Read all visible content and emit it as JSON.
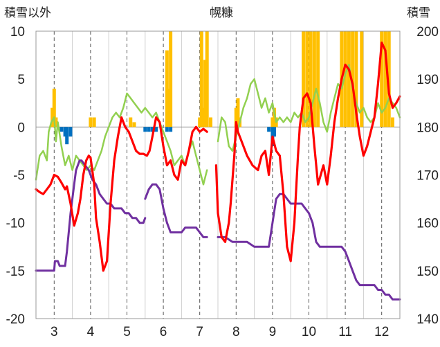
{
  "chart_data": {
    "type": "line",
    "title": "幌糠",
    "ylabel_left": "積雪以外",
    "ylabel_right": "積雪",
    "xlabel": "",
    "x_ticks": [
      "3",
      "4",
      "5",
      "6",
      "7",
      "8",
      "9",
      "10",
      "11",
      "12"
    ],
    "x_range": [
      2.5,
      12.5
    ],
    "ylim_left": [
      -20,
      10
    ],
    "ylim_right": [
      140,
      200
    ],
    "yticks_left": [
      "10",
      "5",
      "0",
      "-5",
      "-10",
      "-15",
      "-20"
    ],
    "yticks_right": [
      "200",
      "190",
      "180",
      "170",
      "160",
      "150",
      "140"
    ],
    "grid": "dashed vertical at each day",
    "colors": {
      "temperature": "#ff0000",
      "secondary": "#92d050",
      "snow_depth": "#7030a0",
      "precipitation": "#ffc000",
      "negative_bars": "#0070c0"
    },
    "series": [
      {
        "axis": "left",
        "x": [
          2.5,
          2.6,
          2.7,
          2.8,
          2.9,
          3.0,
          3.1,
          3.2,
          3.3,
          3.35,
          3.45,
          3.55,
          3.65,
          3.72,
          3.8,
          3.88,
          3.95,
          4.0,
          4.1,
          4.15,
          4.25,
          4.35,
          4.45,
          4.55,
          4.65,
          4.75,
          4.85,
          4.95,
          5.05,
          5.15,
          5.25,
          5.35,
          5.45,
          5.55,
          5.62,
          5.7,
          5.8,
          5.9,
          6.0,
          6.1,
          6.2,
          6.3,
          6.4,
          6.5,
          6.6,
          6.7,
          6.8,
          6.9,
          7.0,
          7.1,
          7.2
        ],
        "values": [
          -6.5,
          -6.8,
          -7.0,
          -6.5,
          -6.0,
          -5.0,
          -5.2,
          -5.8,
          -6.5,
          -6.2,
          -8.0,
          -10.3,
          -9.0,
          -7.5,
          -5.0,
          -3.5,
          -3.0,
          -3.2,
          -6.0,
          -9.5,
          -12.0,
          -15.0,
          -14.0,
          -8.0,
          -3.5,
          -1.0,
          1.0,
          0.0,
          -0.5,
          -1.5,
          -2.5,
          -2.8,
          -2.8,
          -3.0,
          -2.5,
          -1.0,
          1.0,
          0.5,
          -2.0,
          -4.0,
          -3.5,
          -5.0,
          -5.5,
          -3.5,
          -4.0,
          -2.5,
          -0.5,
          0.0,
          -0.5,
          -0.2,
          -0.5
        ]
      },
      {
        "axis": "left",
        "x": [
          7.45,
          7.5,
          7.6,
          7.7,
          7.8,
          7.85,
          7.95,
          8.0,
          8.05,
          8.15,
          8.3,
          8.45,
          8.6,
          8.7,
          8.8,
          8.9,
          9.0,
          9.1,
          9.2,
          9.3,
          9.4,
          9.5,
          9.6,
          9.7,
          9.75,
          9.85,
          9.95,
          10.05,
          10.15,
          10.25,
          10.4,
          10.5,
          10.6,
          10.7,
          10.8,
          10.9,
          11.0,
          11.1,
          11.2,
          11.3,
          11.4,
          11.5,
          11.6,
          11.7,
          11.8,
          11.9,
          12.0,
          12.1,
          12.2,
          12.3,
          12.4,
          12.5
        ],
        "values": [
          -4.0,
          -9.0,
          -11.5,
          -12.0,
          -10.0,
          -8.0,
          -3.0,
          0.5,
          -0.5,
          -1.5,
          -3.0,
          -4.0,
          -4.5,
          -3.0,
          -2.5,
          -5.0,
          -1.0,
          -2.5,
          -3.0,
          -7.0,
          -12.5,
          -14.0,
          -10.0,
          -3.0,
          0.0,
          3.0,
          3.5,
          2.5,
          -2.0,
          -6.0,
          -4.0,
          -6.0,
          -3.0,
          0.5,
          3.0,
          5.0,
          6.5,
          6.0,
          4.5,
          1.5,
          -1.0,
          -3.0,
          -2.0,
          -0.5,
          1.0,
          4.5,
          8.8,
          8.0,
          3.5,
          2.0,
          2.5,
          3.2
        ]
      },
      {
        "axis": "left",
        "x": [
          2.5,
          2.6,
          2.7,
          2.8,
          2.85,
          2.92,
          3.0,
          3.05,
          3.1,
          3.2,
          3.3,
          3.4,
          3.5,
          3.6,
          3.7,
          3.8,
          3.9,
          4.0,
          4.1,
          4.2,
          4.3,
          4.4,
          4.5,
          4.6,
          4.7,
          4.8,
          4.9,
          5.0,
          5.1,
          5.2,
          5.3,
          5.4,
          5.5,
          5.6,
          5.7,
          5.8,
          5.9,
          6.0,
          6.1,
          6.2,
          6.3,
          6.4,
          6.5,
          6.6,
          6.7,
          6.8,
          6.9,
          7.0,
          7.1,
          7.2
        ],
        "values": [
          -5.5,
          -3.0,
          -2.5,
          -3.5,
          -0.5,
          0.5,
          1.0,
          -1.5,
          0.5,
          -2.0,
          -4.0,
          -3.0,
          -4.5,
          -3.0,
          -3.5,
          -4.0,
          -4.5,
          -4.0,
          -4.5,
          -3.5,
          -2.5,
          -1.0,
          0.0,
          1.0,
          1.5,
          1.0,
          2.0,
          3.5,
          3.0,
          2.5,
          2.0,
          1.5,
          2.0,
          1.5,
          1.0,
          1.5,
          0.5,
          -0.5,
          -1.5,
          -2.5,
          -4.0,
          -3.5,
          -3.0,
          -4.0,
          -2.5,
          -1.5,
          -3.0,
          -4.5,
          -6.0,
          -4.5
        ]
      },
      {
        "axis": "left",
        "x": [
          7.5,
          7.6,
          7.7,
          7.8,
          7.9,
          8.0,
          8.1,
          8.2,
          8.3,
          8.4,
          8.5,
          8.6,
          8.7,
          8.8,
          8.9,
          9.0,
          9.1,
          9.2,
          9.3,
          9.4,
          9.5,
          9.6,
          9.7,
          9.8,
          9.9,
          10.0,
          10.1,
          10.2,
          10.3,
          10.4,
          10.5,
          10.6,
          10.7,
          10.8,
          10.9,
          11.0,
          11.1,
          11.2,
          11.3,
          11.4,
          11.5,
          11.6,
          11.7,
          11.8,
          11.9,
          12.0,
          12.1,
          12.2,
          12.3,
          12.4,
          12.5
        ],
        "values": [
          -1.5,
          1.0,
          0.5,
          -2.0,
          -2.5,
          -1.0,
          0.5,
          2.0,
          3.0,
          4.5,
          5.0,
          3.5,
          2.0,
          3.0,
          1.5,
          2.5,
          0.5,
          1.0,
          0.5,
          1.0,
          0.5,
          1.5,
          1.0,
          1.5,
          0.5,
          1.0,
          2.5,
          4.0,
          2.5,
          0.5,
          -0.5,
          1.5,
          3.0,
          4.5,
          4.0,
          5.5,
          6.5,
          4.0,
          2.5,
          1.5,
          2.0,
          1.0,
          0.5,
          1.0,
          2.5,
          1.5,
          2.0,
          3.0,
          2.5,
          2.0,
          1.0
        ]
      },
      {
        "axis": "right",
        "x": [
          2.5,
          2.75,
          3.0,
          3.02,
          3.1,
          3.15,
          3.2,
          3.25,
          3.3,
          3.35,
          3.45,
          3.55,
          3.6,
          3.65,
          3.7,
          3.75,
          3.85,
          3.95,
          4.0,
          4.05,
          4.15,
          4.25,
          4.35,
          4.45,
          4.55,
          4.65,
          4.75,
          4.85,
          4.95,
          5.05,
          5.15,
          5.25,
          5.35,
          5.45,
          5.5
        ],
        "values": [
          150,
          150,
          150,
          152,
          152,
          151,
          151,
          151,
          151,
          154,
          162,
          168,
          171,
          172,
          173,
          173,
          172,
          171,
          170,
          169,
          168,
          166,
          165,
          164,
          164,
          163,
          163,
          163,
          162,
          162,
          161,
          161,
          160,
          160,
          161
        ]
      },
      {
        "axis": "right",
        "x": [
          5.5,
          5.6,
          5.7,
          5.8,
          5.9,
          6.0,
          6.1,
          6.2,
          6.3,
          6.4,
          6.5,
          6.6,
          6.7,
          6.8,
          6.9,
          7.0,
          7.1,
          7.2
        ],
        "values": [
          165,
          167,
          168,
          168,
          167,
          163,
          160,
          158,
          158,
          158,
          158,
          159,
          159,
          159,
          159,
          158,
          157,
          157
        ]
      },
      {
        "axis": "right",
        "x": [
          7.5,
          7.7,
          7.9,
          8.1,
          8.3,
          8.5,
          8.7,
          8.9,
          9.0,
          9.1,
          9.2,
          9.3,
          9.4,
          9.5,
          9.6,
          9.7,
          9.8,
          9.9,
          10.0,
          10.1,
          10.2,
          10.3,
          10.4,
          10.5,
          10.6,
          10.7,
          10.8,
          10.9,
          11.0,
          11.1,
          11.2,
          11.3,
          11.4,
          11.5,
          11.6,
          11.7,
          11.8,
          11.9,
          12.0,
          12.1,
          12.2,
          12.3,
          12.4,
          12.5
        ],
        "values": [
          157,
          157,
          156,
          156,
          156,
          155,
          155,
          155,
          160,
          165,
          166,
          166,
          165,
          164,
          164,
          164,
          164,
          163,
          162,
          160,
          156,
          155,
          155,
          155,
          155,
          155,
          155,
          155,
          154,
          152,
          150,
          148,
          147,
          147,
          147,
          147,
          147,
          146,
          146,
          145,
          145,
          144,
          144,
          144
        ]
      },
      {
        "axis": "left",
        "kind": "bar",
        "x": [
          2.95,
          3.0,
          3.05,
          4.0,
          4.1,
          5.1,
          5.2,
          6.1,
          6.15,
          6.2,
          7.0,
          7.05,
          7.1,
          7.15,
          7.2,
          7.3,
          8.0,
          8.05,
          8.1,
          9.0,
          9.05,
          9.1,
          9.85,
          9.95,
          10.05,
          10.15,
          10.25,
          10.9,
          11.0,
          11.1,
          11.2,
          11.3,
          11.45,
          12.0,
          12.1,
          12.2,
          12.3
        ],
        "values": [
          2.0,
          4.0,
          1.0,
          1.0,
          1.0,
          1.0,
          0.5,
          8.0,
          4.0,
          10.0,
          1.0,
          10.0,
          2.0,
          7.0,
          10.0,
          1.0,
          2.0,
          3.0,
          1.0,
          1.0,
          2.0,
          1.0,
          10.0,
          10.0,
          10.0,
          10.0,
          10.0,
          10.0,
          10.0,
          10.0,
          10.0,
          10.0,
          10.0,
          10.0,
          10.0,
          10.0,
          1.0
        ]
      },
      {
        "axis": "left",
        "kind": "bar",
        "x": [
          3.2,
          3.3,
          3.35,
          3.45,
          5.5,
          5.6,
          5.7,
          5.8,
          6.1,
          6.2,
          8.9,
          9.0,
          9.05
        ],
        "values": [
          -0.5,
          -1.0,
          -1.8,
          -1.0,
          -0.5,
          -0.5,
          -0.5,
          -0.5,
          -0.5,
          -0.5,
          -0.5,
          -2.0,
          -1.0
        ]
      }
    ]
  }
}
